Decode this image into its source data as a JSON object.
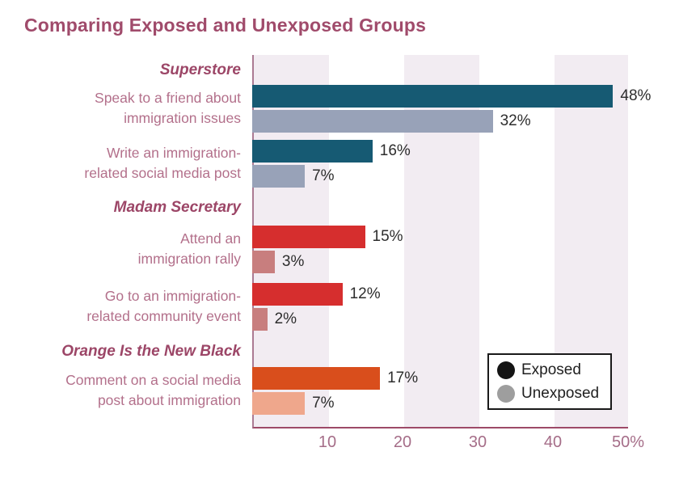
{
  "title": "Comparing Exposed and Unexposed Groups",
  "colors": {
    "title_text": "#a04b6b",
    "group_header_text": "#9c4667",
    "item_label_text": "#b3708b",
    "tick_label_text": "#a56d88",
    "value_label_text": "#2d2d2d",
    "plot_band": "#f2ecf2",
    "axis_left_line": "#ab7b93",
    "axis_bottom_line": "#9d4a68",
    "superstore_exposed": "#165a73",
    "superstore_unexposed": "#98a2b8",
    "madam_secretary_exposed": "#d62e2e",
    "madam_secretary_unexposed": "#c87e7e",
    "oitnb_exposed": "#d94e1c",
    "oitnb_unexposed": "#efa78c"
  },
  "chart_data": {
    "type": "bar",
    "orientation": "horizontal",
    "title": "Comparing Exposed and Unexposed Groups",
    "series_names": [
      "Exposed",
      "Unexposed"
    ],
    "x_axis": {
      "range": [
        0,
        50
      ],
      "unit": "percent",
      "ticks": [
        "10",
        "20",
        "30",
        "40",
        "50%"
      ],
      "tick_values": [
        10,
        20,
        30,
        40,
        50
      ],
      "grid": "alternating vertical background bands every 10 units"
    },
    "legend": {
      "position": "bottom-right",
      "items": [
        {
          "label": "Exposed",
          "swatch_color": "#141414"
        },
        {
          "label": "Unexposed",
          "swatch_color": "#9e9e9e"
        }
      ]
    },
    "groups": [
      {
        "show": "Superstore",
        "exposed_color": "#165a73",
        "unexposed_color": "#98a2b8",
        "items": [
          {
            "label": "Speak to a friend about immigration issues",
            "label_lines": [
              "Speak to a friend about",
              "immigration issues"
            ],
            "exposed": 48,
            "unexposed": 32,
            "exposed_label": "48%",
            "unexposed_label": "32%"
          },
          {
            "label": "Write an immigration-related social media post",
            "label_lines": [
              "Write an immigration-",
              "related social media post"
            ],
            "exposed": 16,
            "unexposed": 7,
            "exposed_label": "16%",
            "unexposed_label": "7%"
          }
        ]
      },
      {
        "show": "Madam Secretary",
        "exposed_color": "#d62e2e",
        "unexposed_color": "#c87e7e",
        "items": [
          {
            "label": "Attend an immigration rally",
            "label_lines": [
              "Attend an",
              "immigration rally"
            ],
            "exposed": 15,
            "unexposed": 3,
            "exposed_label": "15%",
            "unexposed_label": "3%"
          },
          {
            "label": "Go to an immigration-related community event",
            "label_lines": [
              "Go to an immigration-",
              "related community event"
            ],
            "exposed": 12,
            "unexposed": 2,
            "exposed_label": "12%",
            "unexposed_label": "2%"
          }
        ]
      },
      {
        "show": "Orange Is the New Black",
        "exposed_color": "#d94e1c",
        "unexposed_color": "#efa78c",
        "items": [
          {
            "label": "Comment on a social media post about immigration",
            "label_lines": [
              "Comment on a social media",
              "post about immigration"
            ],
            "exposed": 17,
            "unexposed": 7,
            "exposed_label": "17%",
            "unexposed_label": "7%"
          }
        ]
      }
    ]
  }
}
